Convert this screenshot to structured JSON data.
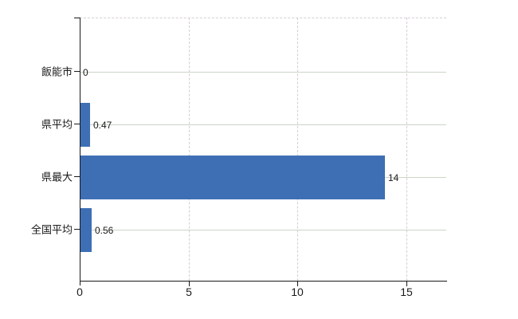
{
  "chart_data": {
    "type": "bar",
    "orientation": "horizontal",
    "title": "",
    "xlabel": "",
    "ylabel": "",
    "categories": [
      "飯能市",
      "県平均",
      "県最大",
      "全国平均"
    ],
    "values": [
      0,
      0.47,
      14,
      0.56
    ],
    "value_labels": [
      "0",
      "0.47",
      "14",
      "0.56"
    ],
    "xlim": [
      0,
      16.83
    ],
    "xticks": [
      0,
      5,
      10,
      15
    ],
    "xtick_labels": [
      "0",
      "5",
      "10",
      "15"
    ],
    "grid": true,
    "legend": false,
    "colors": {
      "bar": "#3e6fb5",
      "horizontal_gridline": "#cbd5c6",
      "vertical_gridline": "#d5cdd5",
      "axis": "#1a1a1a",
      "text": "#1a1a1a",
      "background": "#ffffff"
    }
  }
}
